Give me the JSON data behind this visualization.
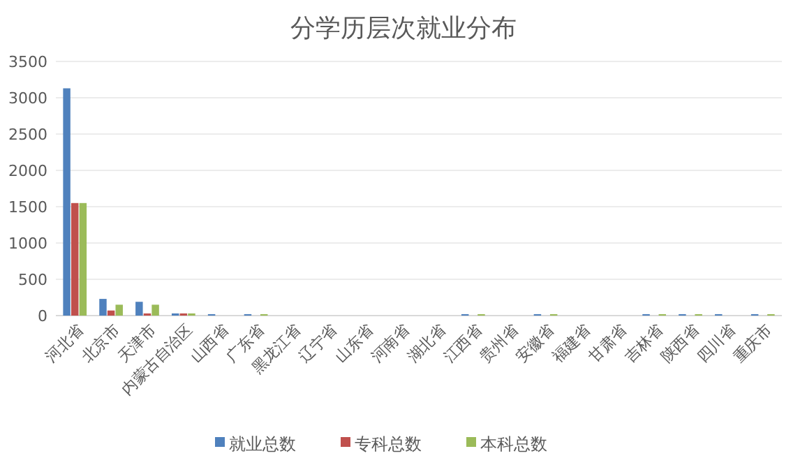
{
  "chart_data": {
    "type": "bar",
    "title": "分学历层次就业分布",
    "categories": [
      "河北省",
      "北京市",
      "天津市",
      "内蒙古自治区",
      "山西省",
      "广东省",
      "黑龙江省",
      "辽宁省",
      "山东省",
      "河南省",
      "湖北省",
      "江西省",
      "贵州省",
      "安徽省",
      "福建省",
      "甘肃省",
      "吉林省",
      "陕西省",
      "四川省",
      "重庆市"
    ],
    "series": [
      {
        "name": "就业总数",
        "color": "#4f81bd",
        "values": [
          3130,
          230,
          190,
          30,
          20,
          20,
          0,
          0,
          0,
          0,
          0,
          20,
          0,
          20,
          0,
          0,
          20,
          20,
          20,
          20
        ]
      },
      {
        "name": "专科总数",
        "color": "#c0504d",
        "values": [
          1550,
          70,
          30,
          30,
          0,
          0,
          0,
          0,
          0,
          0,
          0,
          0,
          0,
          0,
          0,
          0,
          0,
          0,
          0,
          0
        ]
      },
      {
        "name": "本科总数",
        "color": "#9bbb59",
        "values": [
          1550,
          150,
          150,
          30,
          0,
          20,
          0,
          0,
          0,
          0,
          0,
          20,
          0,
          20,
          0,
          0,
          20,
          20,
          0,
          20
        ]
      }
    ],
    "ylim": [
      0,
      3500
    ],
    "yticks": [
      0,
      500,
      1000,
      1500,
      2000,
      2500,
      3000,
      3500
    ],
    "grid": "y",
    "legend": "bottom"
  }
}
